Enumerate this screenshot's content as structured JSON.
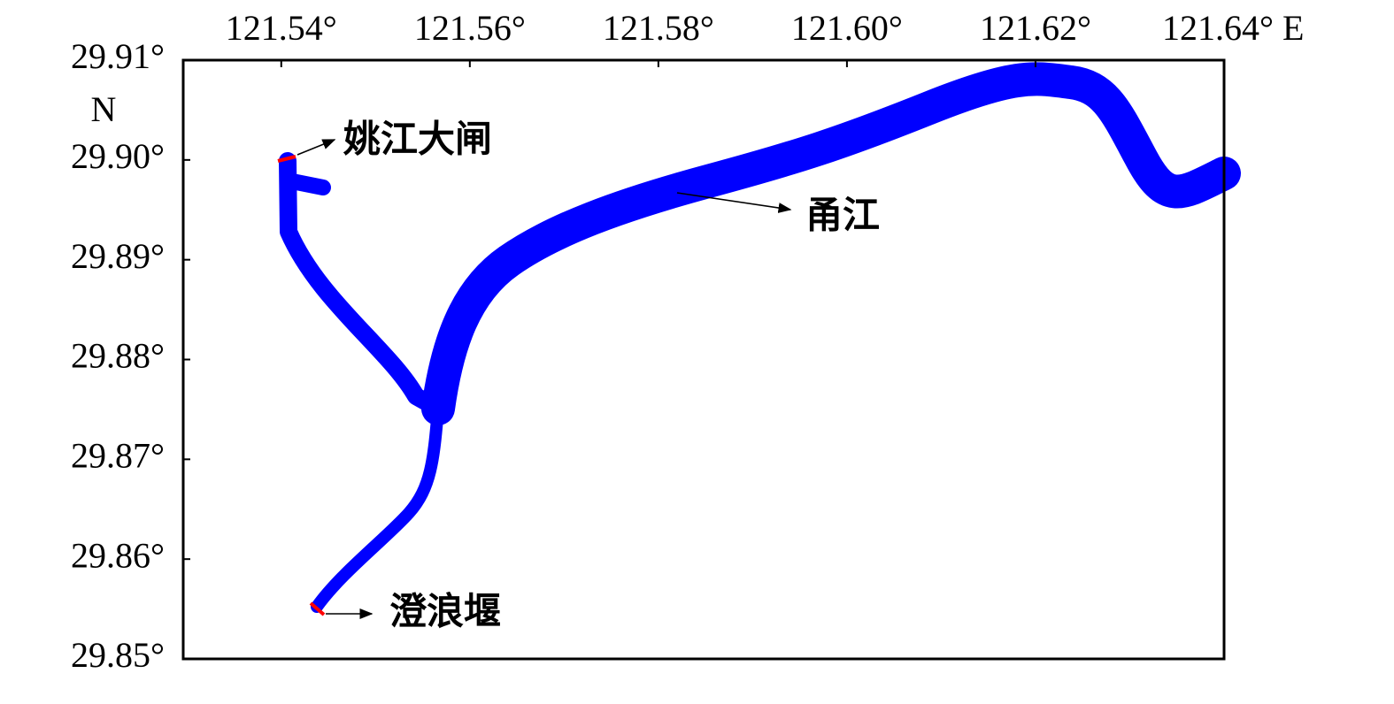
{
  "chart_data": {
    "type": "map",
    "xlim": [
      121.5296,
      121.64
    ],
    "ylim": [
      29.85,
      29.91
    ],
    "xticks": [
      {
        "value": 121.54,
        "label": "121.54°"
      },
      {
        "value": 121.56,
        "label": "121.56°"
      },
      {
        "value": 121.58,
        "label": "121.58°"
      },
      {
        "value": 121.6,
        "label": "121.60°"
      },
      {
        "value": 121.62,
        "label": "121.62°"
      },
      {
        "value": 121.64,
        "label": "121.64° E"
      }
    ],
    "yticks": [
      {
        "value": 29.91,
        "label": "29.91°"
      },
      {
        "value": 29.9,
        "label": "29.90°"
      },
      {
        "value": 29.89,
        "label": "29.89°"
      },
      {
        "value": 29.88,
        "label": "29.88°"
      },
      {
        "value": 29.87,
        "label": "29.87°"
      },
      {
        "value": 29.86,
        "label": "29.86°"
      },
      {
        "value": 29.85,
        "label": "29.85°"
      }
    ],
    "ylabel": "N",
    "annotations": [
      "姚江大闸",
      "甬江",
      "澄浪堰"
    ]
  }
}
